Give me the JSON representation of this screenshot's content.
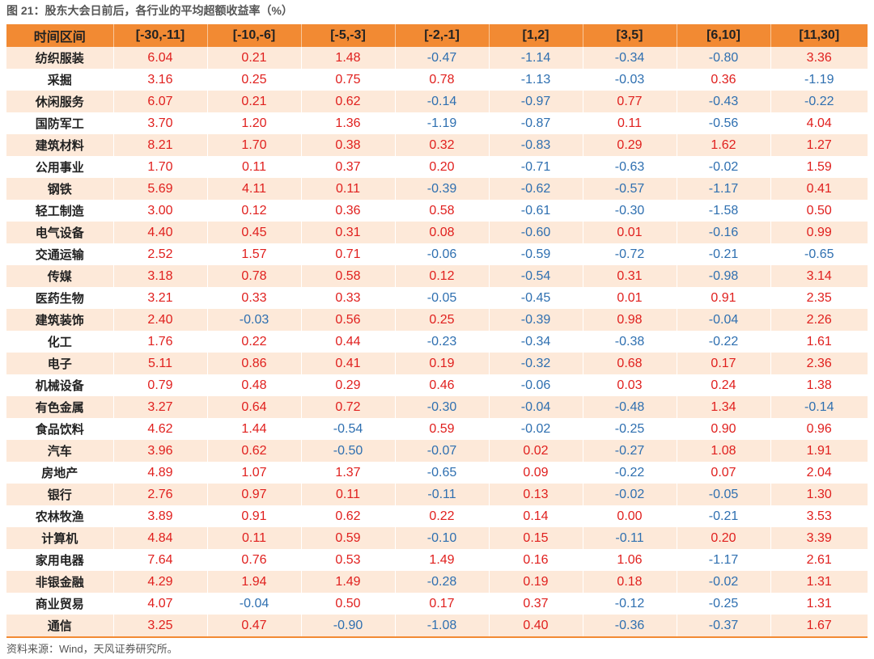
{
  "figure": {
    "title": "图 21：股东大会日前后，各行业的平均超额收益率（%）",
    "source": "资料来源：Wind，天风证券研究所。"
  },
  "colors": {
    "header_bg": "#f28a33",
    "stripe_bg": "#fde9d9",
    "positive": "#e0201e",
    "negative": "#2e6fb0"
  },
  "chart_data": {
    "type": "table",
    "columns": [
      "时间区间",
      "[-30,-11]",
      "[-10,-6]",
      "[-5,-3]",
      "[-2,-1]",
      "[1,2]",
      "[3,5]",
      "[6,10]",
      "[11,30]"
    ],
    "rows": [
      {
        "name": "纺织服装",
        "values": [
          "6.04",
          "0.21",
          "1.48",
          "-0.47",
          "-1.14",
          "-0.34",
          "-0.80",
          "3.36"
        ]
      },
      {
        "name": "采掘",
        "values": [
          "3.16",
          "0.25",
          "0.75",
          "0.78",
          "-1.13",
          "-0.03",
          "0.36",
          "-1.19"
        ]
      },
      {
        "name": "休闲服务",
        "values": [
          "6.07",
          "0.21",
          "0.62",
          "-0.14",
          "-0.97",
          "0.77",
          "-0.43",
          "-0.22"
        ]
      },
      {
        "name": "国防军工",
        "values": [
          "3.70",
          "1.20",
          "1.36",
          "-1.19",
          "-0.87",
          "0.11",
          "-0.56",
          "4.04"
        ]
      },
      {
        "name": "建筑材料",
        "values": [
          "8.21",
          "1.70",
          "0.38",
          "0.32",
          "-0.83",
          "0.29",
          "1.62",
          "1.27"
        ]
      },
      {
        "name": "公用事业",
        "values": [
          "1.70",
          "0.11",
          "0.37",
          "0.20",
          "-0.71",
          "-0.63",
          "-0.02",
          "1.59"
        ]
      },
      {
        "name": "钢铁",
        "values": [
          "5.69",
          "4.11",
          "0.11",
          "-0.39",
          "-0.62",
          "-0.57",
          "-1.17",
          "0.41"
        ]
      },
      {
        "name": "轻工制造",
        "values": [
          "3.00",
          "0.12",
          "0.36",
          "0.58",
          "-0.61",
          "-0.30",
          "-1.58",
          "0.50"
        ]
      },
      {
        "name": "电气设备",
        "values": [
          "4.40",
          "0.45",
          "0.31",
          "0.08",
          "-0.60",
          "0.01",
          "-0.16",
          "0.99"
        ]
      },
      {
        "name": "交通运输",
        "values": [
          "2.52",
          "1.57",
          "0.71",
          "-0.06",
          "-0.59",
          "-0.72",
          "-0.21",
          "-0.65"
        ]
      },
      {
        "name": "传媒",
        "values": [
          "3.18",
          "0.78",
          "0.58",
          "0.12",
          "-0.54",
          "0.31",
          "-0.98",
          "3.14"
        ]
      },
      {
        "name": "医药生物",
        "values": [
          "3.21",
          "0.33",
          "0.33",
          "-0.05",
          "-0.45",
          "0.01",
          "0.91",
          "2.35"
        ]
      },
      {
        "name": "建筑装饰",
        "values": [
          "2.40",
          "-0.03",
          "0.56",
          "0.25",
          "-0.39",
          "0.98",
          "-0.04",
          "2.26"
        ]
      },
      {
        "name": "化工",
        "values": [
          "1.76",
          "0.22",
          "0.44",
          "-0.23",
          "-0.34",
          "-0.38",
          "-0.22",
          "1.61"
        ]
      },
      {
        "name": "电子",
        "values": [
          "5.11",
          "0.86",
          "0.41",
          "0.19",
          "-0.32",
          "0.68",
          "0.17",
          "2.36"
        ]
      },
      {
        "name": "机械设备",
        "values": [
          "0.79",
          "0.48",
          "0.29",
          "0.46",
          "-0.06",
          "0.03",
          "0.24",
          "1.38"
        ]
      },
      {
        "name": "有色金属",
        "values": [
          "3.27",
          "0.64",
          "0.72",
          "-0.30",
          "-0.04",
          "-0.48",
          "1.34",
          "-0.14"
        ]
      },
      {
        "name": "食品饮料",
        "values": [
          "4.62",
          "1.44",
          "-0.54",
          "0.59",
          "-0.02",
          "-0.25",
          "0.90",
          "0.96"
        ]
      },
      {
        "name": "汽车",
        "values": [
          "3.96",
          "0.62",
          "-0.50",
          "-0.07",
          "0.02",
          "-0.27",
          "1.08",
          "1.91"
        ]
      },
      {
        "name": "房地产",
        "values": [
          "4.89",
          "1.07",
          "1.37",
          "-0.65",
          "0.09",
          "-0.22",
          "0.07",
          "2.04"
        ]
      },
      {
        "name": "银行",
        "values": [
          "2.76",
          "0.97",
          "0.11",
          "-0.11",
          "0.13",
          "-0.02",
          "-0.05",
          "1.30"
        ]
      },
      {
        "name": "农林牧渔",
        "values": [
          "3.89",
          "0.91",
          "0.62",
          "0.22",
          "0.14",
          "0.00",
          "-0.21",
          "3.53"
        ]
      },
      {
        "name": "计算机",
        "values": [
          "4.84",
          "0.11",
          "0.59",
          "-0.10",
          "0.15",
          "-0.11",
          "0.20",
          "3.39"
        ]
      },
      {
        "name": "家用电器",
        "values": [
          "7.64",
          "0.76",
          "0.53",
          "1.49",
          "0.16",
          "1.06",
          "-1.17",
          "2.61"
        ]
      },
      {
        "name": "非银金融",
        "values": [
          "4.29",
          "1.94",
          "1.49",
          "-0.28",
          "0.19",
          "0.18",
          "-0.02",
          "1.31"
        ]
      },
      {
        "name": "商业贸易",
        "values": [
          "4.07",
          "-0.04",
          "0.50",
          "0.17",
          "0.37",
          "-0.12",
          "-0.25",
          "1.31"
        ]
      },
      {
        "name": "通信",
        "values": [
          "3.25",
          "0.47",
          "-0.90",
          "-1.08",
          "0.40",
          "-0.36",
          "-0.37",
          "1.67"
        ]
      }
    ]
  }
}
